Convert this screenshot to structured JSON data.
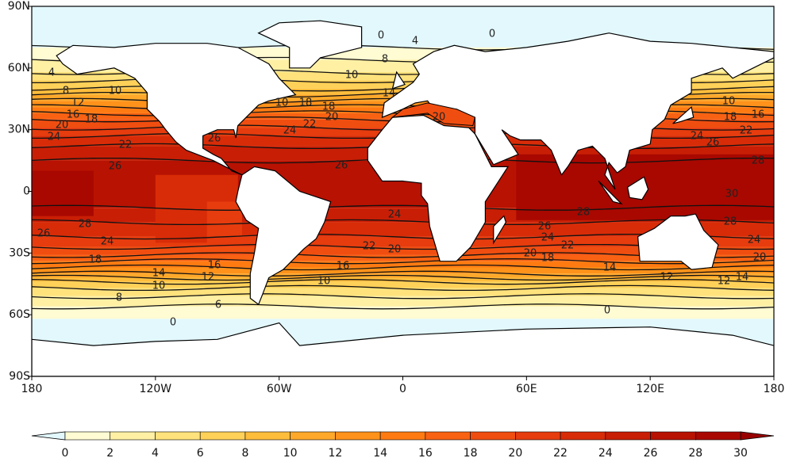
{
  "chart_data": {
    "type": "contour-map",
    "xlim": [
      -180,
      180
    ],
    "ylim": [
      -90,
      90
    ],
    "xticks": [
      {
        "value": -180,
        "label": "180"
      },
      {
        "value": -120,
        "label": "120W"
      },
      {
        "value": -60,
        "label": "60W"
      },
      0,
      {
        "value": 60,
        "label": "60E"
      },
      {
        "value": 120,
        "label": "120E"
      },
      {
        "value": 180,
        "label": "180"
      }
    ],
    "yticks": [
      {
        "value": 90,
        "label": "90N"
      },
      {
        "value": 60,
        "label": "60N"
      },
      {
        "value": 30,
        "label": "30N"
      },
      0,
      {
        "value": -30,
        "label": "30S"
      },
      {
        "value": -60,
        "label": "60S"
      },
      {
        "value": -90,
        "label": "90S"
      }
    ],
    "colorbar": {
      "levels": [
        0,
        2,
        4,
        6,
        8,
        10,
        12,
        14,
        16,
        18,
        20,
        22,
        24,
        26,
        28,
        30
      ],
      "colors": [
        "#fffbd2",
        "#fff0a4",
        "#ffe27c",
        "#ffd158",
        "#ffbd3c",
        "#ffa82a",
        "#ff921a",
        "#ff7b12",
        "#f86212",
        "#f04e10",
        "#e63c0e",
        "#d82c08",
        "#c81e05",
        "#b81202",
        "#a80800"
      ],
      "under_color": "#e2f8fd",
      "over_color": "#980000"
    },
    "contour_labels": [
      28,
      26,
      24,
      18,
      14,
      10,
      12,
      16,
      8,
      6,
      0,
      0,
      10,
      12,
      16,
      18,
      20,
      24,
      22,
      26,
      24,
      22,
      20,
      26,
      24,
      22,
      20,
      16,
      10,
      28,
      26,
      24,
      22,
      20,
      18,
      14,
      12,
      24,
      26,
      28,
      30,
      28,
      24,
      20,
      12,
      14,
      10,
      18,
      14,
      10,
      18,
      16,
      22,
      20,
      26,
      18,
      10,
      0,
      4,
      0,
      8,
      8,
      4
    ]
  }
}
